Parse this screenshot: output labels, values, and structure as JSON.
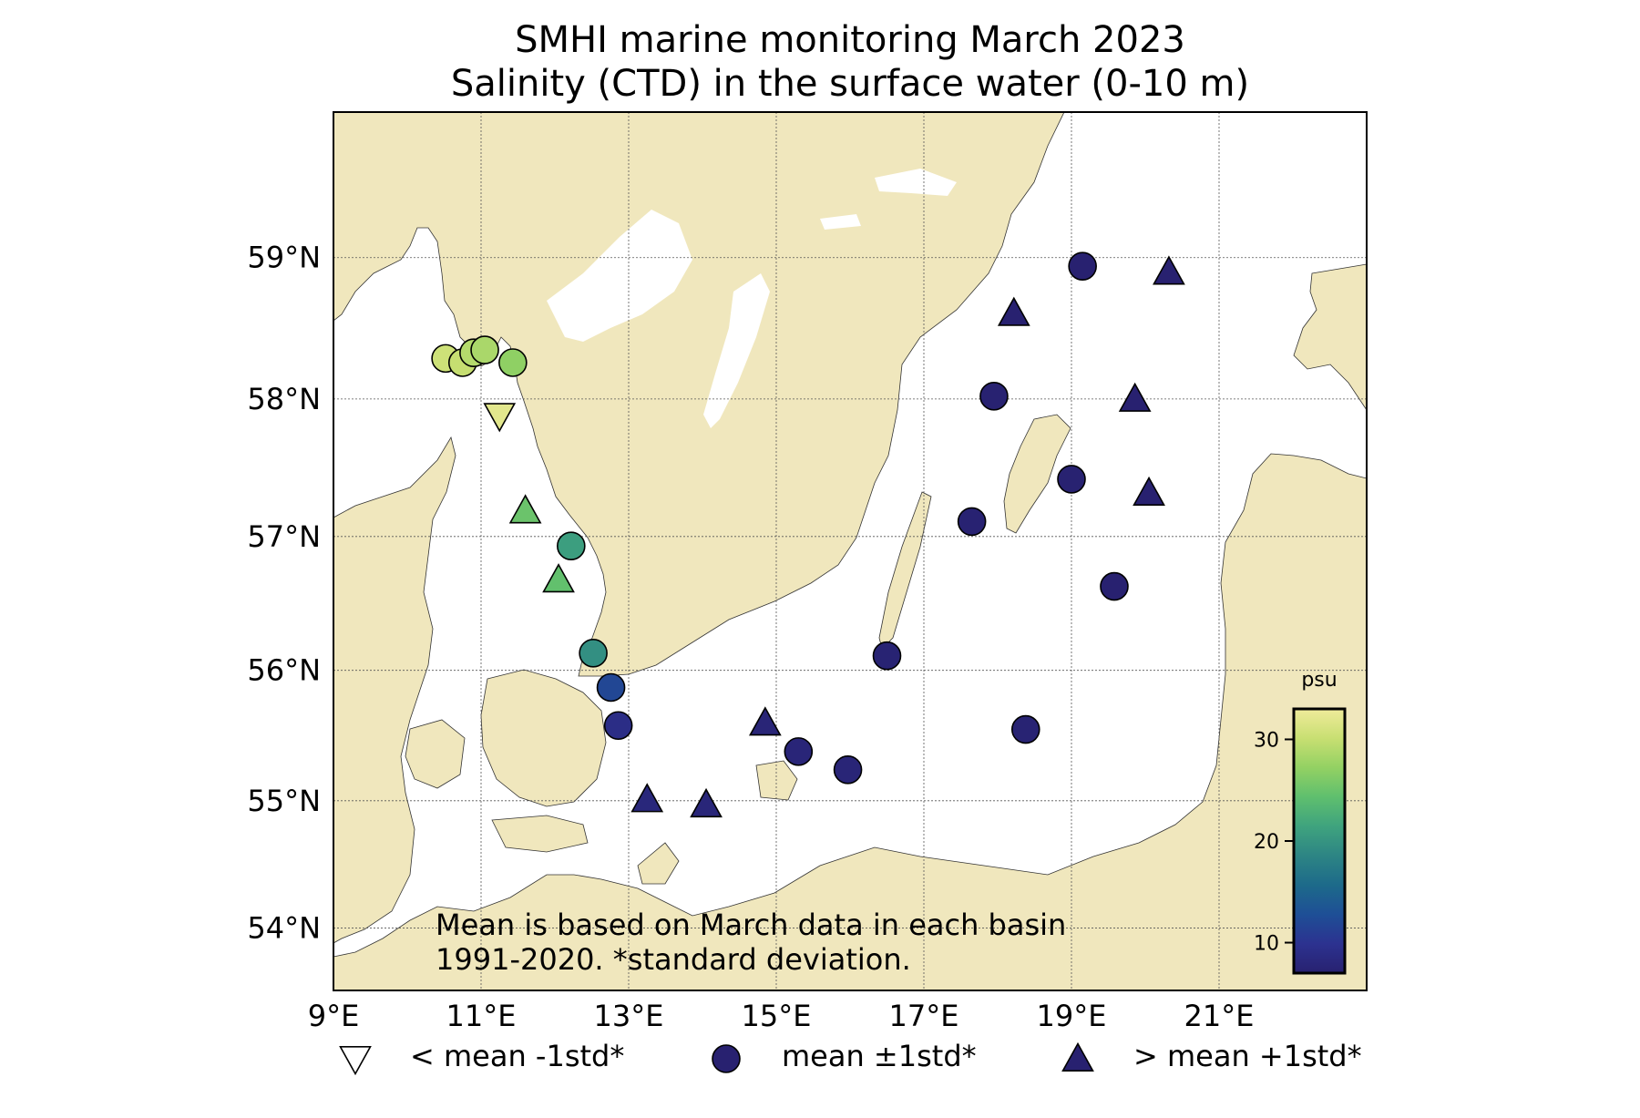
{
  "title": {
    "line1": "SMHI marine monitoring March 2023",
    "line2": "Salinity (CTD) in the surface water (0-10 m)"
  },
  "map": {
    "lon_range": [
      9,
      23
    ],
    "lat_range": [
      53.5,
      60
    ],
    "lat_ticks": [
      {
        "value": 59,
        "label": "59°N"
      },
      {
        "value": 58,
        "label": "58°N"
      },
      {
        "value": 57,
        "label": "57°N"
      },
      {
        "value": 56,
        "label": "56°N"
      },
      {
        "value": 55,
        "label": "55°N"
      },
      {
        "value": 54,
        "label": "54°N"
      }
    ],
    "lon_ticks": [
      {
        "value": 9,
        "label": "9°E"
      },
      {
        "value": 11,
        "label": "11°E"
      },
      {
        "value": 13,
        "label": "13°E"
      },
      {
        "value": 15,
        "label": "15°E"
      },
      {
        "value": 17,
        "label": "17°E"
      },
      {
        "value": 19,
        "label": "19°E"
      },
      {
        "value": 21,
        "label": "21°E"
      }
    ],
    "land_color": "#f0e7bd",
    "sea_color": "#ffffff"
  },
  "stations": [
    {
      "lon": 10.52,
      "lat": 58.29,
      "marker": "circle",
      "salinity": 30.5
    },
    {
      "lon": 10.75,
      "lat": 58.26,
      "marker": "circle",
      "salinity": 30.0
    },
    {
      "lon": 10.9,
      "lat": 58.33,
      "marker": "circle",
      "salinity": 29.0
    },
    {
      "lon": 11.05,
      "lat": 58.35,
      "marker": "circle",
      "salinity": 28.5
    },
    {
      "lon": 11.43,
      "lat": 58.26,
      "marker": "circle",
      "salinity": 27.0
    },
    {
      "lon": 11.25,
      "lat": 57.88,
      "marker": "triangle-down",
      "salinity": 32.0
    },
    {
      "lon": 11.6,
      "lat": 57.19,
      "marker": "triangle-up",
      "salinity": 25.0
    },
    {
      "lon": 12.22,
      "lat": 56.93,
      "marker": "circle",
      "salinity": 21.0
    },
    {
      "lon": 12.05,
      "lat": 56.68,
      "marker": "triangle-up",
      "salinity": 24.5
    },
    {
      "lon": 12.52,
      "lat": 56.13,
      "marker": "circle",
      "salinity": 19.5
    },
    {
      "lon": 12.76,
      "lat": 55.87,
      "marker": "circle",
      "salinity": 12.0
    },
    {
      "lon": 12.86,
      "lat": 55.58,
      "marker": "circle",
      "salinity": 9.0
    },
    {
      "lon": 13.25,
      "lat": 55.01,
      "marker": "triangle-up",
      "salinity": 8.0
    },
    {
      "lon": 14.05,
      "lat": 54.97,
      "marker": "triangle-up",
      "salinity": 7.8
    },
    {
      "lon": 14.85,
      "lat": 55.6,
      "marker": "triangle-up",
      "salinity": 7.6
    },
    {
      "lon": 15.3,
      "lat": 55.38,
      "marker": "circle",
      "salinity": 7.7
    },
    {
      "lon": 15.97,
      "lat": 55.24,
      "marker": "circle",
      "salinity": 7.6
    },
    {
      "lon": 16.5,
      "lat": 56.11,
      "marker": "circle",
      "salinity": 7.3
    },
    {
      "lon": 17.65,
      "lat": 57.11,
      "marker": "circle",
      "salinity": 7.2
    },
    {
      "lon": 17.95,
      "lat": 58.02,
      "marker": "circle",
      "salinity": 7.1
    },
    {
      "lon": 18.22,
      "lat": 58.61,
      "marker": "triangle-up",
      "salinity": 7.0
    },
    {
      "lon": 19.15,
      "lat": 58.94,
      "marker": "circle",
      "salinity": 6.9
    },
    {
      "lon": 20.32,
      "lat": 58.9,
      "marker": "triangle-up",
      "salinity": 7.0
    },
    {
      "lon": 19.0,
      "lat": 57.42,
      "marker": "circle",
      "salinity": 7.1
    },
    {
      "lon": 19.86,
      "lat": 58.0,
      "marker": "triangle-up",
      "salinity": 7.0
    },
    {
      "lon": 20.05,
      "lat": 57.32,
      "marker": "triangle-up",
      "salinity": 7.0
    },
    {
      "lon": 19.58,
      "lat": 56.63,
      "marker": "circle",
      "salinity": 7.0
    },
    {
      "lon": 18.38,
      "lat": 55.55,
      "marker": "circle",
      "salinity": 7.3
    }
  ],
  "colorbar": {
    "label": "psu",
    "min": 7,
    "max": 33,
    "ticks": [
      {
        "value": 30,
        "label": "30"
      },
      {
        "value": 20,
        "label": "20"
      },
      {
        "value": 10,
        "label": "10"
      }
    ],
    "colormap_stops": [
      "#282170",
      "#2c3290",
      "#1e4f96",
      "#1d6a8a",
      "#2d8584",
      "#3fa37e",
      "#5fbf6e",
      "#93d163",
      "#c8df72",
      "#f0eb9b"
    ]
  },
  "note": {
    "line1": "Mean is based on March data in each basin",
    "line2": "1991-2020. *standard deviation."
  },
  "legend": {
    "items": [
      {
        "marker": "triangle-down",
        "label": "< mean -1std*",
        "color": "#ffffff"
      },
      {
        "marker": "circle",
        "label": "mean ±1std*",
        "color": "#282170"
      },
      {
        "marker": "triangle-up",
        "label": "> mean +1std*",
        "color": "#282170"
      }
    ]
  }
}
